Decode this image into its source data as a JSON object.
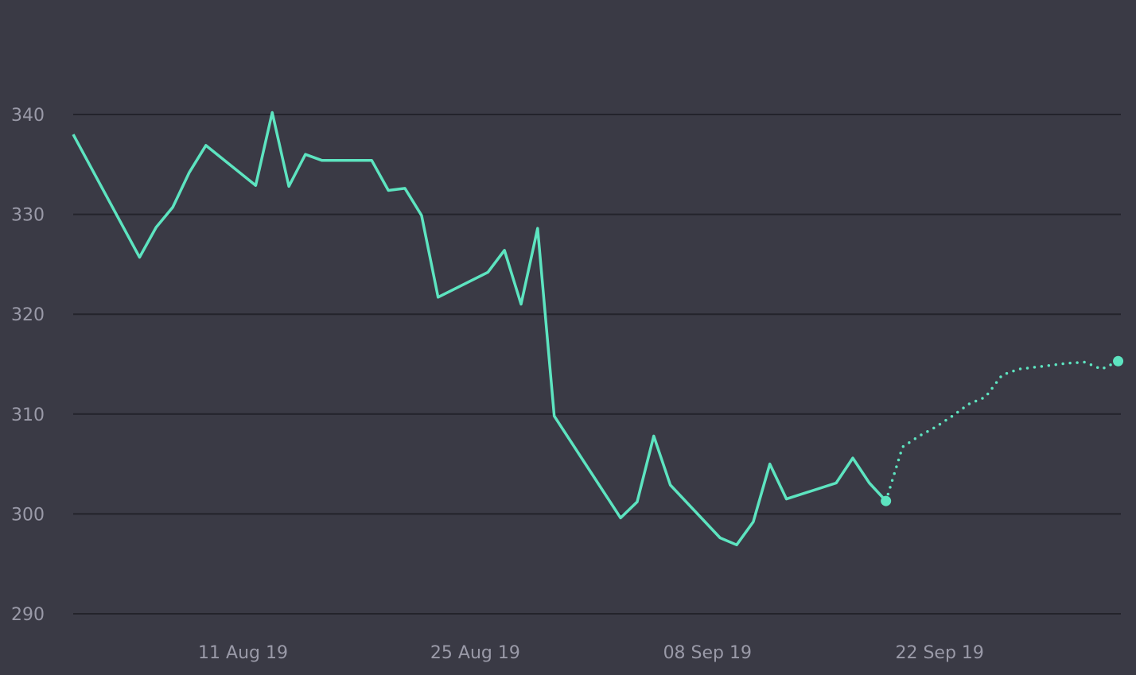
{
  "chart_data": {
    "type": "line",
    "y_ticks": [
      290,
      300,
      310,
      320,
      330,
      340
    ],
    "ylim": [
      290,
      345
    ],
    "x_ticks": [
      {
        "x": "2019-08-11",
        "label": "11 Aug 19"
      },
      {
        "x": "2019-08-25",
        "label": "25 Aug 19"
      },
      {
        "x": "2019-09-08",
        "label": "08 Sep 19"
      },
      {
        "x": "2019-09-22",
        "label": "22 Sep 19"
      }
    ],
    "xlim": [
      "2019-08-01",
      "2019-10-04"
    ],
    "grid": true,
    "colors": {
      "background": "#3a3a45",
      "line": "#5de4c0",
      "grid": "#23232b",
      "text": "#9a9aa8"
    },
    "series": [
      {
        "style": "solid",
        "points": [
          {
            "x": "2019-08-01",
            "y": 338.0
          },
          {
            "x": "2019-08-05",
            "y": 325.7
          },
          {
            "x": "2019-08-06",
            "y": 328.7
          },
          {
            "x": "2019-08-07",
            "y": 330.7
          },
          {
            "x": "2019-08-08",
            "y": 334.2
          },
          {
            "x": "2019-08-09",
            "y": 336.9
          },
          {
            "x": "2019-08-12",
            "y": 332.9
          },
          {
            "x": "2019-08-13",
            "y": 340.2
          },
          {
            "x": "2019-08-14",
            "y": 332.8
          },
          {
            "x": "2019-08-15",
            "y": 336.0
          },
          {
            "x": "2019-08-16",
            "y": 335.4
          },
          {
            "x": "2019-08-19",
            "y": 335.4
          },
          {
            "x": "2019-08-20",
            "y": 332.4
          },
          {
            "x": "2019-08-21",
            "y": 332.6
          },
          {
            "x": "2019-08-22",
            "y": 329.9
          },
          {
            "x": "2019-08-23",
            "y": 321.7
          },
          {
            "x": "2019-08-26",
            "y": 324.2
          },
          {
            "x": "2019-08-27",
            "y": 326.4
          },
          {
            "x": "2019-08-28",
            "y": 321.0
          },
          {
            "x": "2019-08-29",
            "y": 328.6
          },
          {
            "x": "2019-08-30",
            "y": 309.8
          },
          {
            "x": "2019-09-03",
            "y": 299.6
          },
          {
            "x": "2019-09-04",
            "y": 301.2
          },
          {
            "x": "2019-09-05",
            "y": 307.8
          },
          {
            "x": "2019-09-06",
            "y": 302.9
          },
          {
            "x": "2019-09-09",
            "y": 297.6
          },
          {
            "x": "2019-09-10",
            "y": 296.9
          },
          {
            "x": "2019-09-11",
            "y": 299.2
          },
          {
            "x": "2019-09-12",
            "y": 305.0
          },
          {
            "x": "2019-09-13",
            "y": 301.5
          },
          {
            "x": "2019-09-16",
            "y": 303.1
          },
          {
            "x": "2019-09-17",
            "y": 305.6
          },
          {
            "x": "2019-09-18",
            "y": 303.1
          },
          {
            "x": "2019-09-19",
            "y": 301.3
          }
        ]
      },
      {
        "style": "dotted",
        "points": [
          {
            "x": "2019-09-19",
            "y": 301.3
          },
          {
            "x": "2019-09-20",
            "y": 306.7
          },
          {
            "x": "2019-09-21",
            "y": 307.8
          },
          {
            "x": "2019-09-22",
            "y": 308.7
          },
          {
            "x": "2019-09-23",
            "y": 309.8
          },
          {
            "x": "2019-09-24",
            "y": 311.0
          },
          {
            "x": "2019-09-25",
            "y": 311.7
          },
          {
            "x": "2019-09-26",
            "y": 313.9
          },
          {
            "x": "2019-09-27",
            "y": 314.5
          },
          {
            "x": "2019-09-28",
            "y": 314.7
          },
          {
            "x": "2019-09-29",
            "y": 314.9
          },
          {
            "x": "2019-09-30",
            "y": 315.1
          },
          {
            "x": "2019-10-01",
            "y": 315.2
          },
          {
            "x": "2019-10-02",
            "y": 314.5
          },
          {
            "x": "2019-10-03",
            "y": 315.3
          }
        ]
      }
    ]
  }
}
